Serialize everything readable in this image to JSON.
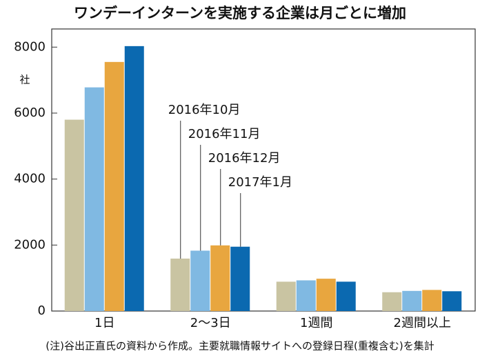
{
  "chart_data": {
    "type": "bar",
    "title": "ワンデーインターンを実施する企業は月ごとに増加",
    "y_unit": "社",
    "footnote": "(注)谷出正直氏の資料から作成。主要就職情報サイトへの登録日程(重複含む)を集計",
    "categories": [
      "1日",
      "2〜3日",
      "1週間",
      "2週間以上"
    ],
    "series": [
      {
        "name": "2016年10月",
        "color": "#c9c4a2",
        "values": [
          5800,
          1590,
          890,
          570
        ]
      },
      {
        "name": "2016年11月",
        "color": "#80b9e2",
        "values": [
          6780,
          1830,
          930,
          610
        ]
      },
      {
        "name": "2016年12月",
        "color": "#e8a63f",
        "values": [
          7550,
          1990,
          980,
          640
        ]
      },
      {
        "name": "2017年1月",
        "color": "#0b69b0",
        "values": [
          8030,
          1950,
          890,
          600
        ]
      }
    ],
    "ylim": [
      0,
      8550
    ],
    "yticks": [
      0,
      2000,
      4000,
      6000,
      8000
    ]
  }
}
